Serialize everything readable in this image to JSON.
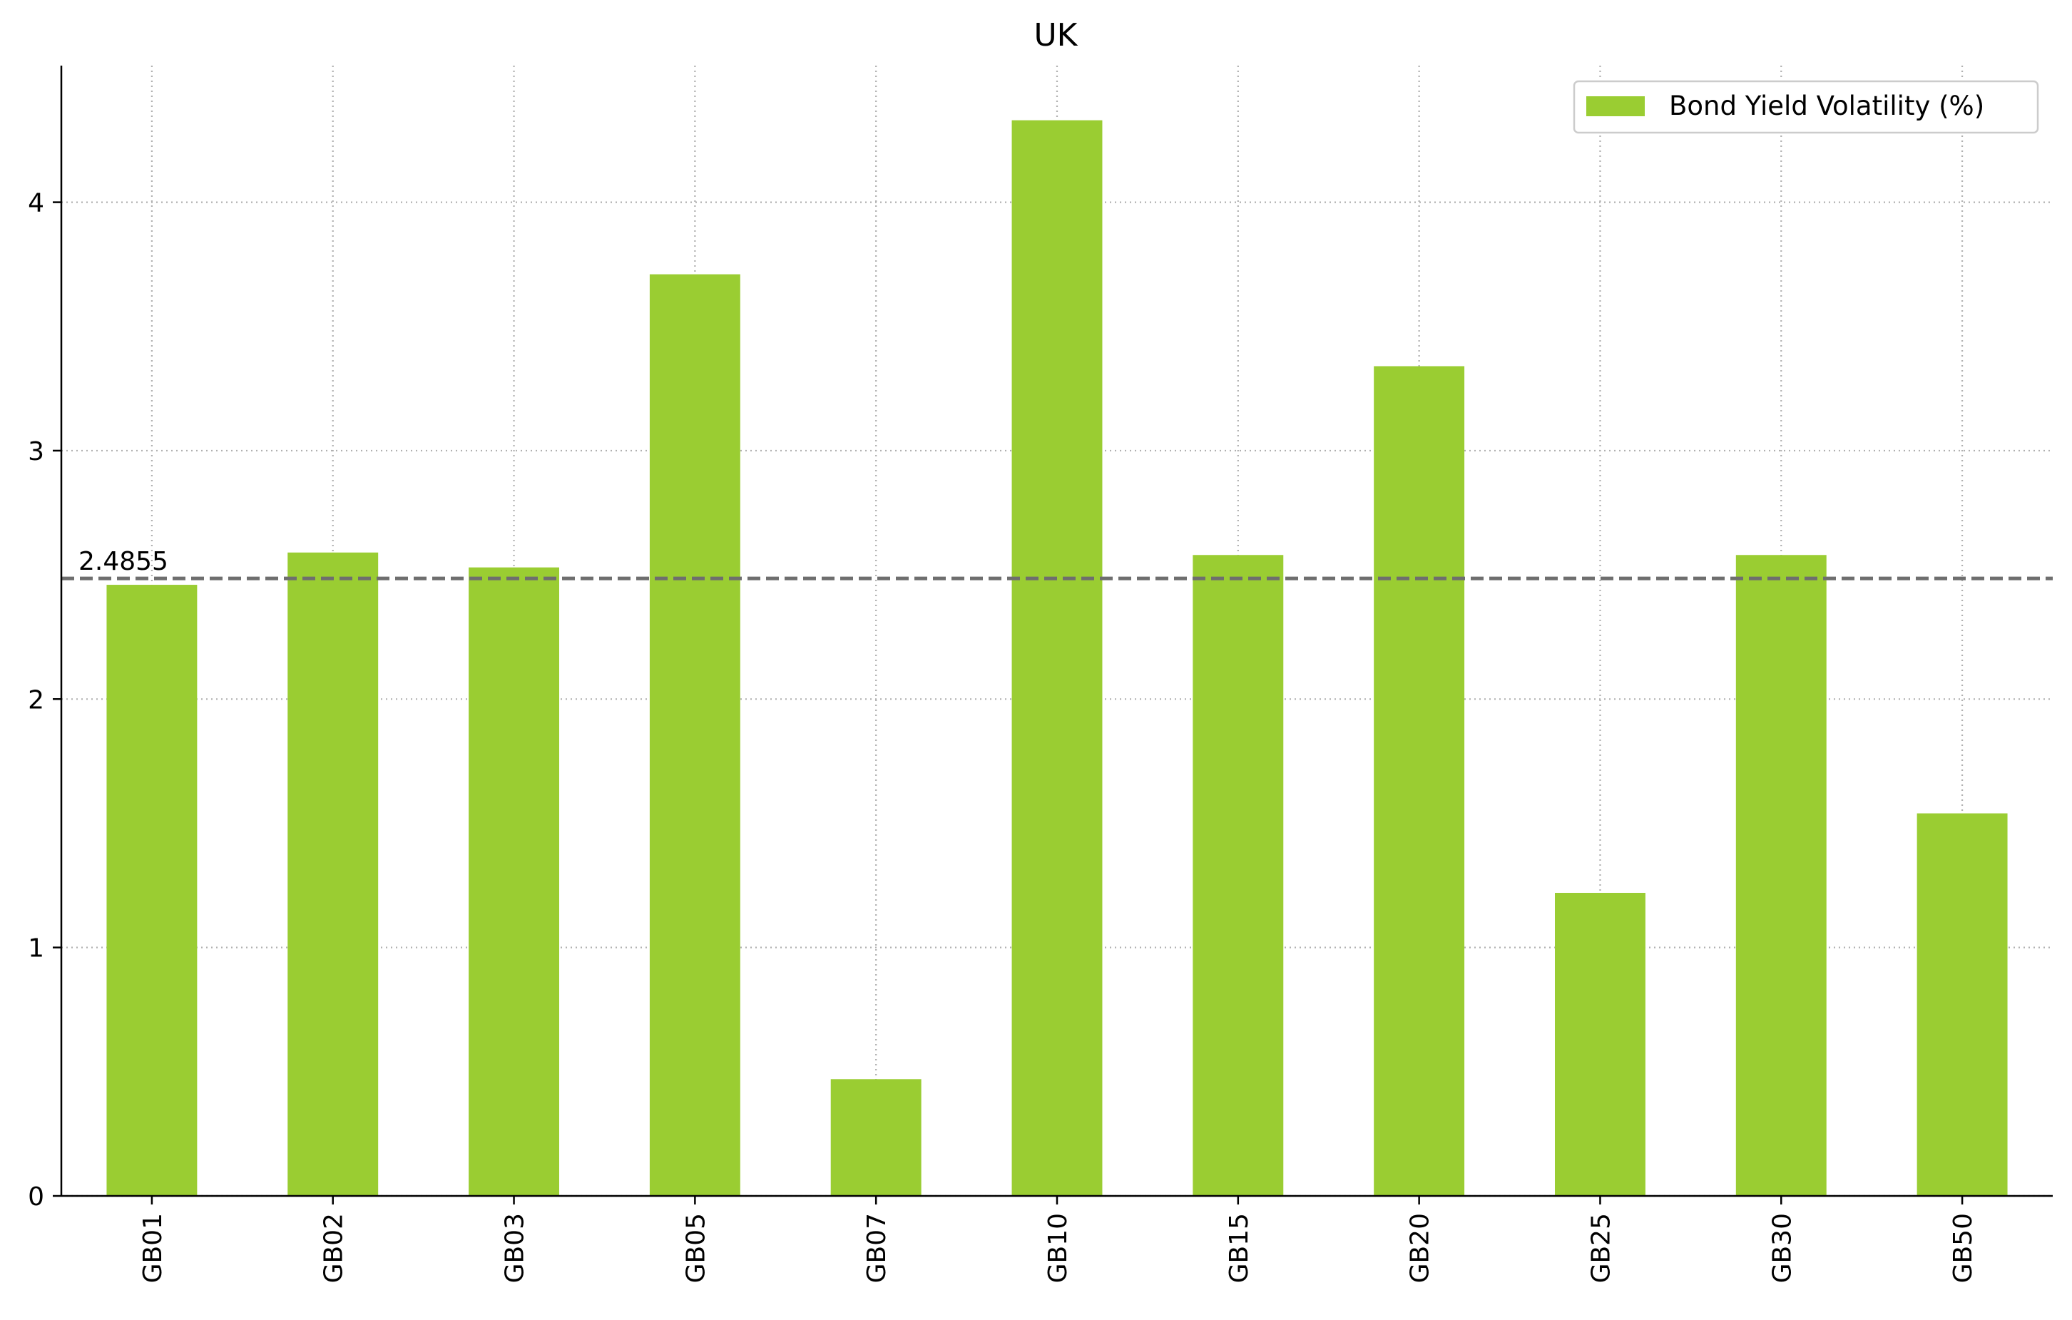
{
  "chart_data": {
    "type": "bar",
    "title": "UK",
    "xlabel": "",
    "ylabel": "",
    "categories": [
      "GB01",
      "GB02",
      "GB03",
      "GB05",
      "GB07",
      "GB10",
      "GB15",
      "GB20",
      "GB25",
      "GB30",
      "GB50"
    ],
    "series": [
      {
        "name": "Bond Yield Volatility (%)",
        "values": [
          2.46,
          2.59,
          2.53,
          3.71,
          0.47,
          4.33,
          2.58,
          3.34,
          1.22,
          2.58,
          1.54
        ]
      }
    ],
    "ylim": [
      0,
      4.55
    ],
    "yticks": [
      0,
      1,
      2,
      3,
      4
    ],
    "grid": true,
    "legend_position": "top-right",
    "x_tick_rotation": "vertical",
    "reference_line": {
      "value": 2.4855,
      "label": "2.4855",
      "style": "dashed"
    },
    "colors": {
      "bar": "#9ACD32",
      "reference_line": "#6e6e6e",
      "grid": "#b0b0b0"
    }
  }
}
